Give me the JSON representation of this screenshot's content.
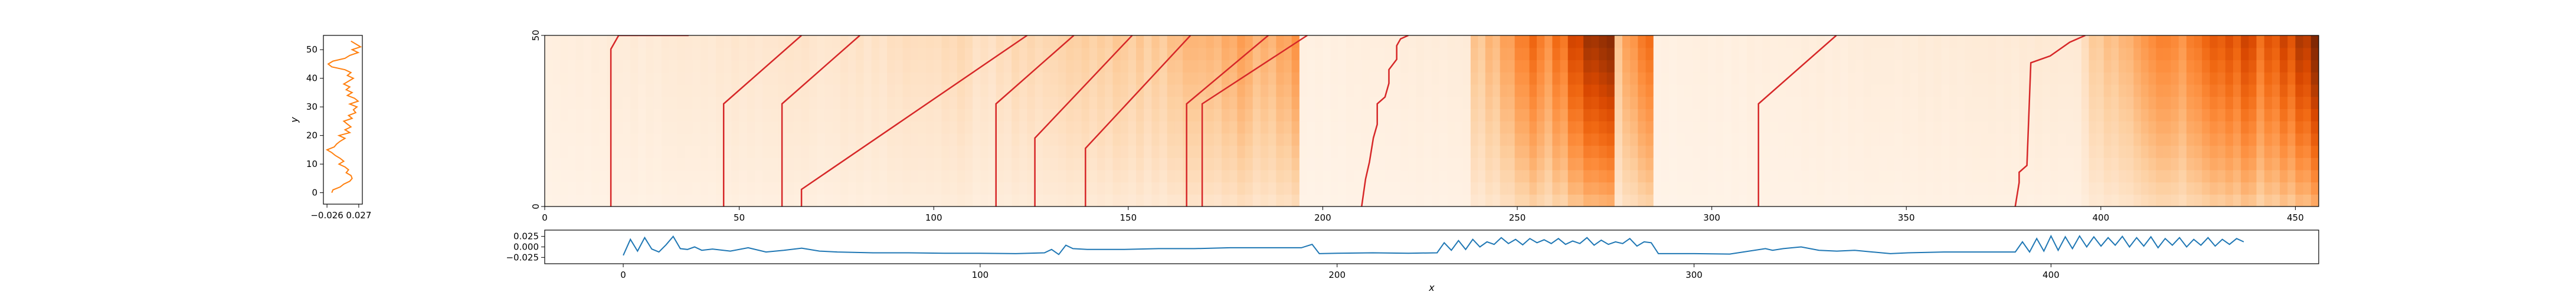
{
  "chart_data": [
    {
      "type": "line",
      "panel": "left-profile",
      "orientation": "vertical",
      "xlim": [
        -0.032,
        0.033
      ],
      "ylim": [
        -4,
        55
      ],
      "xticks": [
        -0.026,
        0.027
      ],
      "xtick_labels": [
        "−0.026",
        "0.027"
      ],
      "yticks": [
        0,
        10,
        20,
        30,
        40,
        50
      ],
      "ytick_labels": [
        "0",
        "10",
        "20",
        "30",
        "40",
        "50"
      ],
      "ylabel": "y",
      "xlabel": "",
      "grid": false,
      "color": "#ff7f0e",
      "series": [
        {
          "y": [
            0,
            1,
            2,
            3,
            4,
            5,
            6,
            7,
            8,
            9,
            10,
            11,
            12,
            13,
            14,
            15,
            16,
            17,
            18,
            19,
            20,
            21,
            22,
            23,
            24,
            25,
            26,
            27,
            28,
            29,
            30,
            31,
            32,
            33,
            34,
            35,
            36,
            37,
            38,
            39,
            40,
            41,
            42,
            43,
            44,
            45,
            46,
            47,
            48,
            49,
            50,
            51,
            52,
            53
          ],
          "x": [
            -0.018,
            -0.016,
            -0.004,
            0.002,
            0.012,
            0.016,
            0.014,
            0.006,
            0.01,
            0.004,
            -0.006,
            0.002,
            -0.004,
            -0.012,
            -0.018,
            -0.026,
            -0.014,
            -0.01,
            -0.004,
            0.004,
            -0.006,
            0.012,
            0.004,
            0.014,
            0.008,
            0.002,
            0.016,
            0.01,
            0.022,
            0.018,
            0.024,
            0.012,
            0.026,
            0.02,
            0.008,
            0.016,
            0.006,
            0.012,
            0.002,
            0.01,
            0.018,
            0.008,
            0.014,
            0.004,
            -0.018,
            -0.024,
            -0.016,
            0.004,
            0.012,
            0.026,
            0.016,
            0.03,
            0.022,
            0.014
          ]
        }
      ]
    },
    {
      "type": "heatmap",
      "panel": "main-heatmap",
      "colormap": "Oranges",
      "xlim": [
        0,
        456
      ],
      "ylim": [
        0,
        50
      ],
      "xticks": [
        0,
        50,
        100,
        150,
        200,
        250,
        300,
        350,
        400,
        450
      ],
      "xtick_labels": [
        "0",
        "50",
        "100",
        "150",
        "200",
        "250",
        "300",
        "350",
        "400",
        "450"
      ],
      "yticks": [
        0,
        50
      ],
      "ytick_labels": [
        "0",
        "50"
      ],
      "xlabel": "",
      "ylabel": "",
      "grid": false,
      "column_intensity": [
        {
          "x": [
            0,
            20
          ],
          "v": [
            0.05,
            0.08
          ]
        },
        {
          "x": [
            20,
            70
          ],
          "v": [
            0.08,
            0.14
          ]
        },
        {
          "x": [
            70,
            110
          ],
          "v": [
            0.12,
            0.2
          ]
        },
        {
          "x": [
            110,
            150
          ],
          "v": [
            0.16,
            0.28
          ]
        },
        {
          "x": [
            150,
            182
          ],
          "v": [
            0.25,
            0.42
          ]
        },
        {
          "x": [
            182,
            194
          ],
          "v": [
            0.35,
            0.45
          ]
        },
        {
          "x": [
            194,
            238
          ],
          "v": [
            0.04,
            0.08
          ]
        },
        {
          "x": [
            238,
            255
          ],
          "v": [
            0.25,
            0.6
          ]
        },
        {
          "x": [
            255,
            275
          ],
          "v": [
            0.5,
            1.0
          ]
        },
        {
          "x": [
            275,
            285
          ],
          "v": [
            0.35,
            0.6
          ]
        },
        {
          "x": [
            285,
            395
          ],
          "v": [
            0.04,
            0.1
          ]
        },
        {
          "x": [
            395,
            418
          ],
          "v": [
            0.2,
            0.55
          ]
        },
        {
          "x": [
            418,
            440
          ],
          "v": [
            0.5,
            0.8
          ]
        },
        {
          "x": [
            440,
            456
          ],
          "v": [
            0.6,
            0.95
          ]
        }
      ],
      "overlay_lines_color": "#d62728",
      "overlay_lines": [
        {
          "x": [
            17,
            17,
            19,
            37
          ],
          "y": [
            0,
            46,
            50,
            50
          ]
        },
        {
          "x": [
            46,
            46,
            66
          ],
          "y": [
            0,
            30,
            50
          ]
        },
        {
          "x": [
            61,
            61,
            81
          ],
          "y": [
            0,
            30,
            50
          ]
        },
        {
          "x": [
            66,
            66,
            124
          ],
          "y": [
            0,
            5,
            50
          ]
        },
        {
          "x": [
            116,
            116,
            136
          ],
          "y": [
            0,
            30,
            50
          ]
        },
        {
          "x": [
            126,
            126,
            151
          ],
          "y": [
            0,
            20,
            50
          ]
        },
        {
          "x": [
            139,
            139,
            166
          ],
          "y": [
            0,
            17,
            50
          ]
        },
        {
          "x": [
            165,
            165,
            186
          ],
          "y": [
            0,
            30,
            50
          ]
        },
        {
          "x": [
            169,
            169,
            196
          ],
          "y": [
            0,
            30,
            50
          ]
        },
        {
          "x": [
            210,
            211,
            212,
            213,
            214,
            214,
            216,
            217,
            217,
            219,
            219,
            220,
            222
          ],
          "y": [
            0,
            8,
            13,
            20,
            24,
            30,
            32,
            36,
            40,
            43,
            47,
            49,
            50
          ]
        },
        {
          "x": [
            312,
            312,
            332
          ],
          "y": [
            0,
            30,
            50
          ]
        },
        {
          "x": [
            378,
            379,
            379,
            381,
            382,
            387,
            392,
            396
          ],
          "y": [
            0,
            7,
            10,
            12,
            42,
            44,
            48,
            50
          ]
        }
      ]
    },
    {
      "type": "line",
      "panel": "bottom-profile",
      "xlim": [
        -22,
        475
      ],
      "ylim": [
        -0.04,
        0.04
      ],
      "xticks": [
        0,
        100,
        200,
        300,
        400
      ],
      "xtick_labels": [
        "0",
        "100",
        "200",
        "300",
        "400"
      ],
      "yticks": [
        0.025,
        0.0,
        -0.025
      ],
      "ytick_labels": [
        "0.025",
        "0.000",
        "−0.025"
      ],
      "xlabel": "x",
      "ylabel": "",
      "grid": false,
      "color": "#1f77b4",
      "series": [
        {
          "x": [
            0,
            2,
            4,
            6,
            8,
            10,
            12,
            14,
            16,
            18,
            20,
            22,
            25,
            30,
            35,
            40,
            45,
            50,
            55,
            60,
            70,
            80,
            90,
            100,
            110,
            118,
            120,
            122,
            124,
            126,
            130,
            140,
            150,
            160,
            170,
            180,
            190,
            193,
            195,
            200,
            210,
            220,
            228,
            230,
            232,
            234,
            236,
            238,
            240,
            242,
            244,
            246,
            248,
            250,
            252,
            254,
            256,
            258,
            260,
            262,
            264,
            266,
            268,
            270,
            272,
            274,
            276,
            278,
            280,
            282,
            284,
            286,
            288,
            290,
            300,
            310,
            320,
            322,
            325,
            330,
            335,
            340,
            345,
            350,
            355,
            360,
            370,
            380,
            390,
            392,
            394,
            396,
            398,
            400,
            402,
            404,
            406,
            408,
            410,
            412,
            414,
            416,
            418,
            420,
            422,
            424,
            426,
            428,
            430,
            432,
            434,
            436,
            438,
            440,
            442,
            444,
            446,
            448,
            450,
            452,
            454
          ],
          "y": [
            -0.02,
            0.018,
            -0.01,
            0.022,
            -0.005,
            -0.012,
            0.005,
            0.025,
            -0.004,
            -0.006,
            0.0,
            -0.008,
            -0.005,
            -0.01,
            -0.002,
            -0.012,
            -0.008,
            -0.003,
            -0.01,
            -0.012,
            -0.014,
            -0.014,
            -0.015,
            -0.015,
            -0.016,
            -0.014,
            -0.006,
            -0.018,
            0.004,
            -0.004,
            -0.006,
            -0.006,
            -0.004,
            -0.004,
            -0.002,
            -0.002,
            -0.002,
            0.006,
            -0.016,
            -0.015,
            -0.014,
            -0.015,
            -0.014,
            0.01,
            -0.008,
            0.015,
            -0.006,
            0.018,
            0.0,
            0.012,
            0.006,
            0.022,
            0.008,
            0.018,
            0.005,
            0.02,
            0.01,
            0.017,
            0.008,
            0.02,
            0.006,
            0.014,
            0.008,
            0.022,
            0.004,
            0.016,
            0.006,
            0.012,
            0.008,
            0.02,
            0.002,
            0.012,
            0.01,
            -0.016,
            -0.016,
            -0.017,
            -0.004,
            -0.008,
            -0.004,
            0.0,
            -0.008,
            -0.01,
            -0.008,
            -0.012,
            -0.016,
            -0.014,
            -0.012,
            -0.012,
            -0.012,
            0.012,
            -0.012,
            0.02,
            -0.01,
            0.026,
            -0.008,
            0.024,
            -0.004,
            0.026,
            0.0,
            0.024,
            0.002,
            0.022,
            0.004,
            0.025,
            0.0,
            0.022,
            0.002,
            0.024,
            -0.002,
            0.02,
            0.004,
            0.022,
            0.0,
            0.018,
            0.004,
            0.022,
            0.002,
            0.018,
            0.006,
            0.02,
            0.012
          ]
        }
      ]
    }
  ]
}
